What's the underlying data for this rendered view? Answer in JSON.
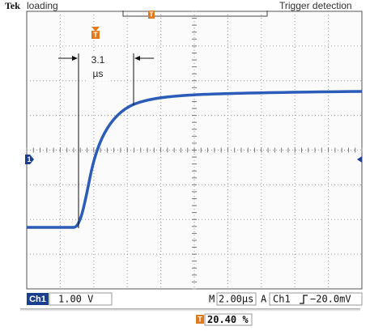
{
  "header": {
    "brand": "Tek",
    "status": "loading",
    "trigger_label": "Trigger detection"
  },
  "markers": {
    "trigger": "T",
    "channel": "1"
  },
  "annotation": {
    "value": "3.1",
    "unit": "µs"
  },
  "status_bar": {
    "channel": "Ch1",
    "volts_per_div": "1.00 V",
    "timebase_prefix": "M",
    "time_per_div": "2.00µs",
    "trigger_mode": "A",
    "trigger_channel": "Ch1",
    "trigger_level": "−20.0mV"
  },
  "trigger_position": "20.40 %"
}
